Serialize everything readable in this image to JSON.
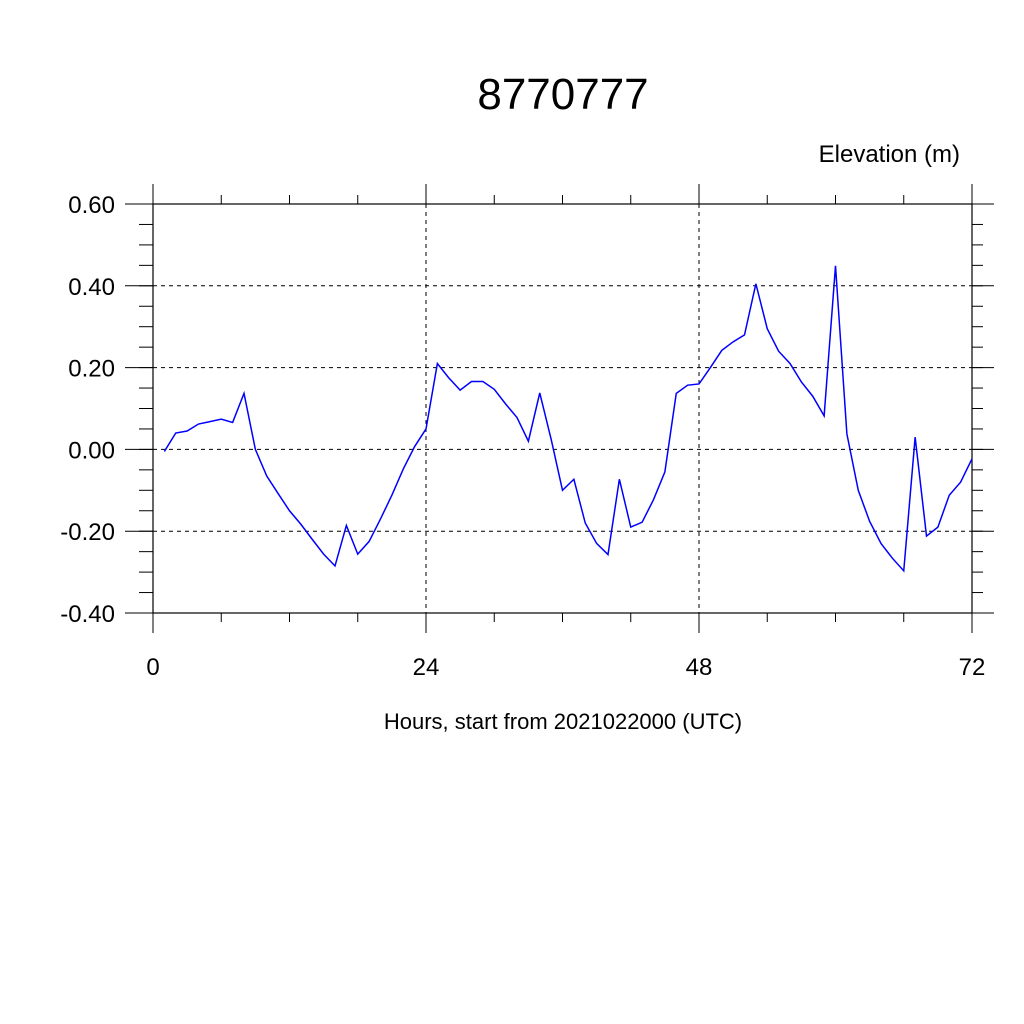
{
  "chart_data": {
    "type": "line",
    "title": "8770777",
    "ylabel": "Elevation (m)",
    "xlabel": "Hours, start from 2021022000 (UTC)",
    "xlim": [
      0,
      72
    ],
    "ylim": [
      -0.4,
      0.6
    ],
    "x_ticks": [
      0,
      24,
      48,
      72
    ],
    "x_tick_labels": [
      "0",
      "24",
      "48",
      "72"
    ],
    "y_ticks": [
      -0.4,
      -0.2,
      0.0,
      0.2,
      0.4,
      0.6
    ],
    "y_tick_labels": [
      "-0.40",
      "-0.20",
      "0.00",
      "0.20",
      "0.40",
      "0.60"
    ],
    "grid": true,
    "colors": {
      "series": "#0000ff",
      "axes": "#000000"
    },
    "series": [
      {
        "x": [
          1,
          2,
          3,
          4,
          5,
          6,
          7,
          8,
          9,
          10,
          11,
          12,
          13,
          14,
          15,
          16,
          17,
          18,
          19,
          20,
          21,
          22,
          23,
          24,
          25,
          26,
          27,
          28,
          29,
          30,
          31,
          32,
          33,
          34,
          35,
          36,
          37,
          38,
          39,
          40,
          41,
          42,
          43,
          44,
          45,
          46,
          47,
          48,
          49,
          50,
          51,
          52,
          53,
          54,
          55,
          56,
          57,
          58,
          59,
          60,
          61,
          62,
          63,
          64,
          65,
          66,
          67,
          68,
          69,
          70,
          71,
          72
        ],
        "values": [
          -0.005,
          0.04,
          0.045,
          0.062,
          0.068,
          0.074,
          0.066,
          0.137,
          0.0,
          -0.065,
          -0.108,
          -0.15,
          -0.183,
          -0.22,
          -0.256,
          -0.285,
          -0.186,
          -0.256,
          -0.225,
          -0.17,
          -0.112,
          -0.048,
          0.007,
          0.05,
          0.21,
          0.175,
          0.145,
          0.166,
          0.166,
          0.147,
          0.111,
          0.078,
          0.02,
          0.138,
          0.025,
          -0.1,
          -0.073,
          -0.18,
          -0.23,
          -0.257,
          -0.073,
          -0.19,
          -0.178,
          -0.123,
          -0.055,
          0.137,
          0.157,
          0.16,
          0.2,
          0.242,
          0.263,
          0.28,
          0.405,
          0.295,
          0.24,
          0.21,
          0.165,
          0.13,
          0.082,
          0.449,
          0.038,
          -0.1,
          -0.176,
          -0.23,
          -0.266,
          -0.297,
          0.03,
          -0.212,
          -0.19,
          -0.112,
          -0.08,
          -0.023
        ]
      }
    ]
  }
}
